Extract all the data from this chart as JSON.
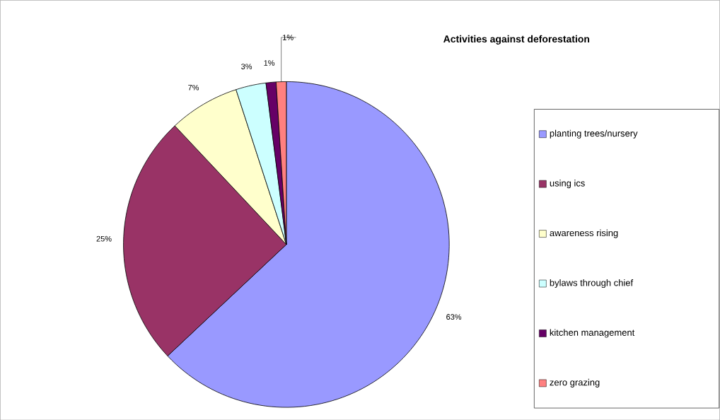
{
  "chart_data": {
    "type": "pie",
    "title": "Activities against deforestation",
    "categories": [
      "planting trees/nursery",
      "using ics",
      "awareness rising",
      "bylaws through chief",
      "kitchen management",
      "zero grazing"
    ],
    "values": [
      63,
      25,
      7,
      3,
      1,
      1
    ],
    "colors": [
      "#9999ff",
      "#993366",
      "#ffffcc",
      "#ccffff",
      "#660066",
      "#ff8080"
    ],
    "value_labels": [
      "63%",
      "25%",
      "7%",
      "3%",
      "1%",
      "1%"
    ],
    "legend": "right"
  }
}
